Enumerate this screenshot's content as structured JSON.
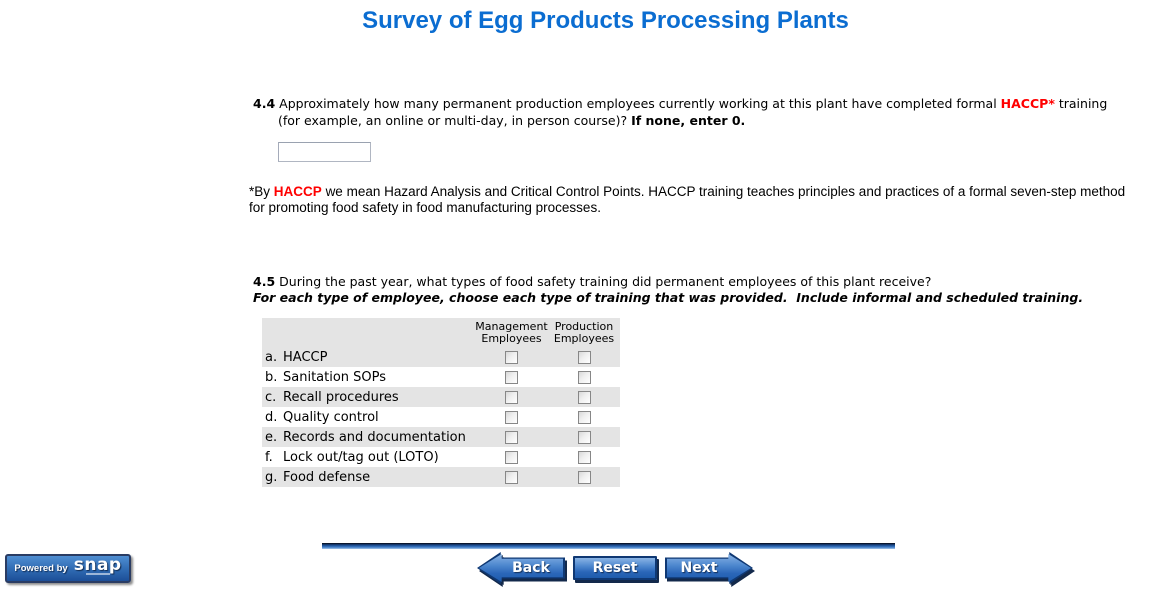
{
  "title": "Survey of Egg Products Processing Plants",
  "q44": {
    "number": "4.4",
    "line1_text": "Approximately how many permanent production employees currently working at this plant have completed formal",
    "line1_highlight": "HACCP*",
    "line1_end": "training",
    "line2_text": "(for example, an online or multi-day, in person course)?",
    "line2_bold": "If none, enter 0.",
    "input_value": ""
  },
  "footnote": {
    "prefix": "*By",
    "highlight": "HACCP",
    "text": "we mean Hazard Analysis and Critical Control Points. HACCP training teaches principles and practices of a formal seven-step method for promoting food safety in food manufacturing processes."
  },
  "q45": {
    "number": "4.5",
    "line1": "During the past year, what types of food safety training did permanent employees of this plant receive?",
    "line2": "For each type of employee, choose each type of training that was provided.  Include informal and scheduled training."
  },
  "table": {
    "columns": [
      {
        "line1": "Management",
        "line2": "Employees"
      },
      {
        "line1": "Production",
        "line2": "Employees"
      }
    ],
    "rows": [
      {
        "letter": "a.",
        "label": "HACCP"
      },
      {
        "letter": "b.",
        "label": "Sanitation SOPs"
      },
      {
        "letter": "c.",
        "label": "Recall procedures"
      },
      {
        "letter": "d.",
        "label": "Quality control"
      },
      {
        "letter": "e.",
        "label": "Records and documentation"
      },
      {
        "letter": "f.",
        "label": "Lock out/tag out (LOTO)"
      },
      {
        "letter": "g.",
        "label": "Food defense"
      }
    ],
    "checkbox_state": "unchecked"
  },
  "nav": {
    "back_label": "Back",
    "reset_label": "Reset",
    "next_label": "Next"
  },
  "footer_logo": {
    "prefix": "Powered by",
    "brand": "snap"
  },
  "colors": {
    "title_blue": "#0b6dd1",
    "highlight_red": "#ff0000",
    "row_gray": "#e4e4e4",
    "button_blue": "#2a66b8",
    "shadow_navy": "#13294b"
  }
}
